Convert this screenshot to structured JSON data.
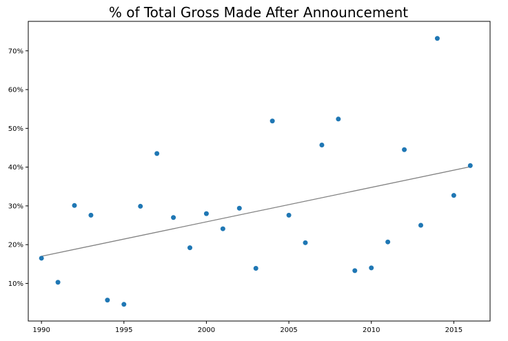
{
  "chart_data": {
    "type": "scatter",
    "title": "% of Total Gross Made After Announcement",
    "xlabel": "",
    "ylabel": "",
    "xlim": [
      1989.2,
      2017.2
    ],
    "ylim": [
      0.3,
      77.6
    ],
    "x_ticks": [
      1990,
      1995,
      2000,
      2005,
      2010,
      2015
    ],
    "y_ticks": [
      10,
      20,
      30,
      40,
      50,
      60,
      70
    ],
    "y_tick_format": "%",
    "grid": false,
    "point_color": "#1f77b4",
    "trend_color": "#808080",
    "series": [
      {
        "x": [
          1990,
          1991,
          1992,
          1993,
          1994,
          1995,
          1996,
          1997,
          1998,
          1999,
          2000,
          2001,
          2002,
          2003,
          2004,
          2005,
          2006,
          2007,
          2008,
          2009,
          2010,
          2011,
          2012,
          2013,
          2014,
          2015,
          2016
        ],
        "y": [
          16.5,
          10.3,
          30.1,
          27.6,
          5.7,
          4.6,
          29.9,
          43.5,
          27.0,
          19.2,
          28.0,
          24.1,
          29.4,
          13.9,
          51.9,
          27.6,
          20.5,
          45.7,
          52.4,
          13.3,
          14.0,
          20.7,
          44.5,
          25.0,
          73.2,
          32.7,
          40.4
        ]
      }
    ],
    "trendline": {
      "x": [
        1990,
        2016
      ],
      "y": [
        17.0,
        40.1
      ]
    }
  }
}
